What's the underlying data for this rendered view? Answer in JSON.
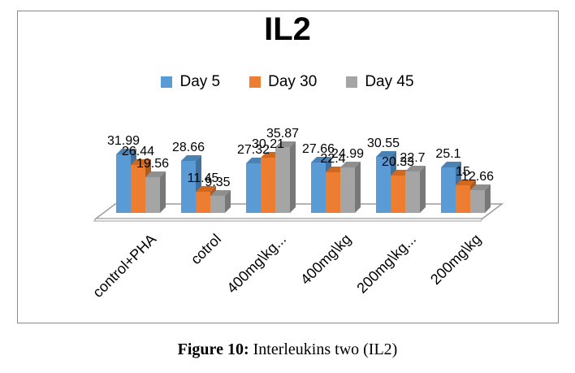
{
  "chart": {
    "border_color": "#8a8a8a",
    "background": "#ffffff"
  },
  "chart_data": {
    "type": "bar",
    "subtype": "3d-clustered-column",
    "title": "IL2",
    "categories": [
      "control+PHA",
      "cotrol",
      "400mg\\kg...",
      "400mg\\kg",
      "200mg\\kg...",
      "200mg\\kg"
    ],
    "series": [
      {
        "name": "Day 5",
        "color": "#5b9bd5",
        "top_color": "#4a82b4",
        "side_color": "#41719c",
        "values": [
          31.99,
          28.66,
          27.32,
          27.66,
          30.55,
          25.1
        ]
      },
      {
        "name": "Day 30",
        "color": "#ed7d31",
        "top_color": "#d0691f",
        "side_color": "#ae5a21",
        "values": [
          26.44,
          11.45,
          30.21,
          22.4,
          20.33,
          15
        ]
      },
      {
        "name": "Day 45",
        "color": "#a5a5a5",
        "top_color": "#8f8f8f",
        "side_color": "#787878",
        "values": [
          19.56,
          9.35,
          35.87,
          24.99,
          22.7,
          12.66
        ]
      }
    ],
    "ylim": [
      0,
      40
    ],
    "y_axis_visible": false,
    "grid": false,
    "data_labels": true,
    "legend_position": "top",
    "xlabel": "",
    "ylabel": ""
  },
  "caption": {
    "label": "Figure 10:",
    "text": " Interleukins two (IL2)"
  }
}
